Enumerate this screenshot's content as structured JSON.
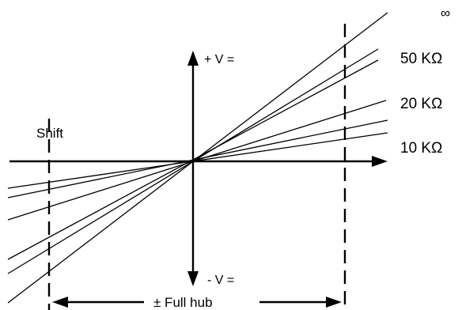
{
  "labels": {
    "infinity": "∞",
    "r50": "50 KΩ",
    "r20": "20 KΩ",
    "r10": "10 KΩ",
    "shift": "Shift",
    "plus_v": "+ V =",
    "minus_v": "- V =",
    "full_hub": "± Full hub"
  }
}
